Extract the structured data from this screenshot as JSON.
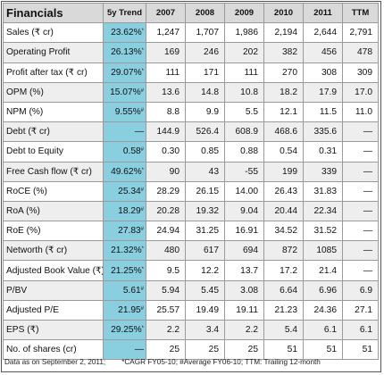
{
  "title": "Financials",
  "headers": [
    "5y Trend",
    "2007",
    "2008",
    "2009",
    "2010",
    "2011",
    "TTM"
  ],
  "rows": [
    {
      "label": "Sales (₹ cr)",
      "trend": "23.62%",
      "mark": "*",
      "values": [
        "1,247",
        "1,707",
        "1,986",
        "2,194",
        "2,644",
        "2,791"
      ]
    },
    {
      "label": "Operating Profit",
      "trend": "26.13%",
      "mark": "*",
      "values": [
        "169",
        "246",
        "202",
        "382",
        "456",
        "478"
      ]
    },
    {
      "label": "Profit after tax (₹ cr)",
      "trend": "29.07%",
      "mark": "*",
      "values": [
        "111",
        "171",
        "111",
        "270",
        "308",
        "309"
      ]
    },
    {
      "label": "OPM (%)",
      "trend": "15.07%",
      "mark": "#",
      "values": [
        "13.6",
        "14.8",
        "10.8",
        "18.2",
        "17.9",
        "17.0"
      ]
    },
    {
      "label": "NPM (%)",
      "trend": "9.55%",
      "mark": "#",
      "values": [
        "8.8",
        "9.9",
        "5.5",
        "12.1",
        "11.5",
        "11.0"
      ]
    },
    {
      "label": "Debt (₹ cr)",
      "trend": "—",
      "mark": "",
      "values": [
        "144.9",
        "526.4",
        "608.9",
        "468.6",
        "335.6",
        "—"
      ]
    },
    {
      "label": "Debt to Equity",
      "trend": "0.58",
      "mark": "#",
      "values": [
        "0.30",
        "0.85",
        "0.88",
        "0.54",
        "0.31",
        "—"
      ]
    },
    {
      "label": "Free Cash flow (₹ cr)",
      "trend": "49.62%",
      "mark": "*",
      "values": [
        "90",
        "43",
        "-55",
        "199",
        "339",
        "—"
      ]
    },
    {
      "label": "RoCE (%)",
      "trend": "25.34",
      "mark": "#",
      "values": [
        "28.29",
        "26.15",
        "14.00",
        "26.43",
        "31.83",
        "—"
      ]
    },
    {
      "label": "RoA (%)",
      "trend": "18.29",
      "mark": "#",
      "values": [
        "20.28",
        "19.32",
        "9.04",
        "20.44",
        "22.34",
        "—"
      ]
    },
    {
      "label": "RoE (%)",
      "trend": "27.83",
      "mark": "#",
      "values": [
        "24.94",
        "31.25",
        "16.91",
        "34.52",
        "31.52",
        "—"
      ]
    },
    {
      "label": "Networth (₹ cr)",
      "trend": "21.32%",
      "mark": "*",
      "values": [
        "480",
        "617",
        "694",
        "872",
        "1085",
        "—"
      ]
    },
    {
      "label": "Adjusted Book Value (₹)",
      "trend": "21.25%",
      "mark": "*",
      "values": [
        "9.5",
        "12.2",
        "13.7",
        "17.2",
        "21.4",
        "—"
      ]
    },
    {
      "label": "P/BV",
      "trend": "5.61",
      "mark": "#",
      "values": [
        "5.94",
        "5.45",
        "3.08",
        "6.64",
        "6.96",
        "6.9"
      ]
    },
    {
      "label": "Adjusted P/E",
      "trend": "21.95",
      "mark": "#",
      "values": [
        "25.57",
        "19.49",
        "19.11",
        "21.23",
        "24.36",
        "27.1"
      ]
    },
    {
      "label": "EPS (₹)",
      "trend": "29.25%",
      "mark": "*",
      "values": [
        "2.2",
        "3.4",
        "2.2",
        "5.4",
        "6.1",
        "6.1"
      ]
    },
    {
      "label": "No. of shares (cr)",
      "trend": "—",
      "mark": "",
      "values": [
        "25",
        "25",
        "25",
        "51",
        "51",
        "51"
      ]
    }
  ],
  "footnote": {
    "date": "Data as on September 2, 2011;",
    "legend": "*CAGR FY05-10; #Average FY06-10; TTM: Trailing 12-month"
  },
  "colors": {
    "trend_column": "#89cfe0",
    "header_bg": "#d9d9d9",
    "alt_row_bg": "#eeeeee"
  }
}
